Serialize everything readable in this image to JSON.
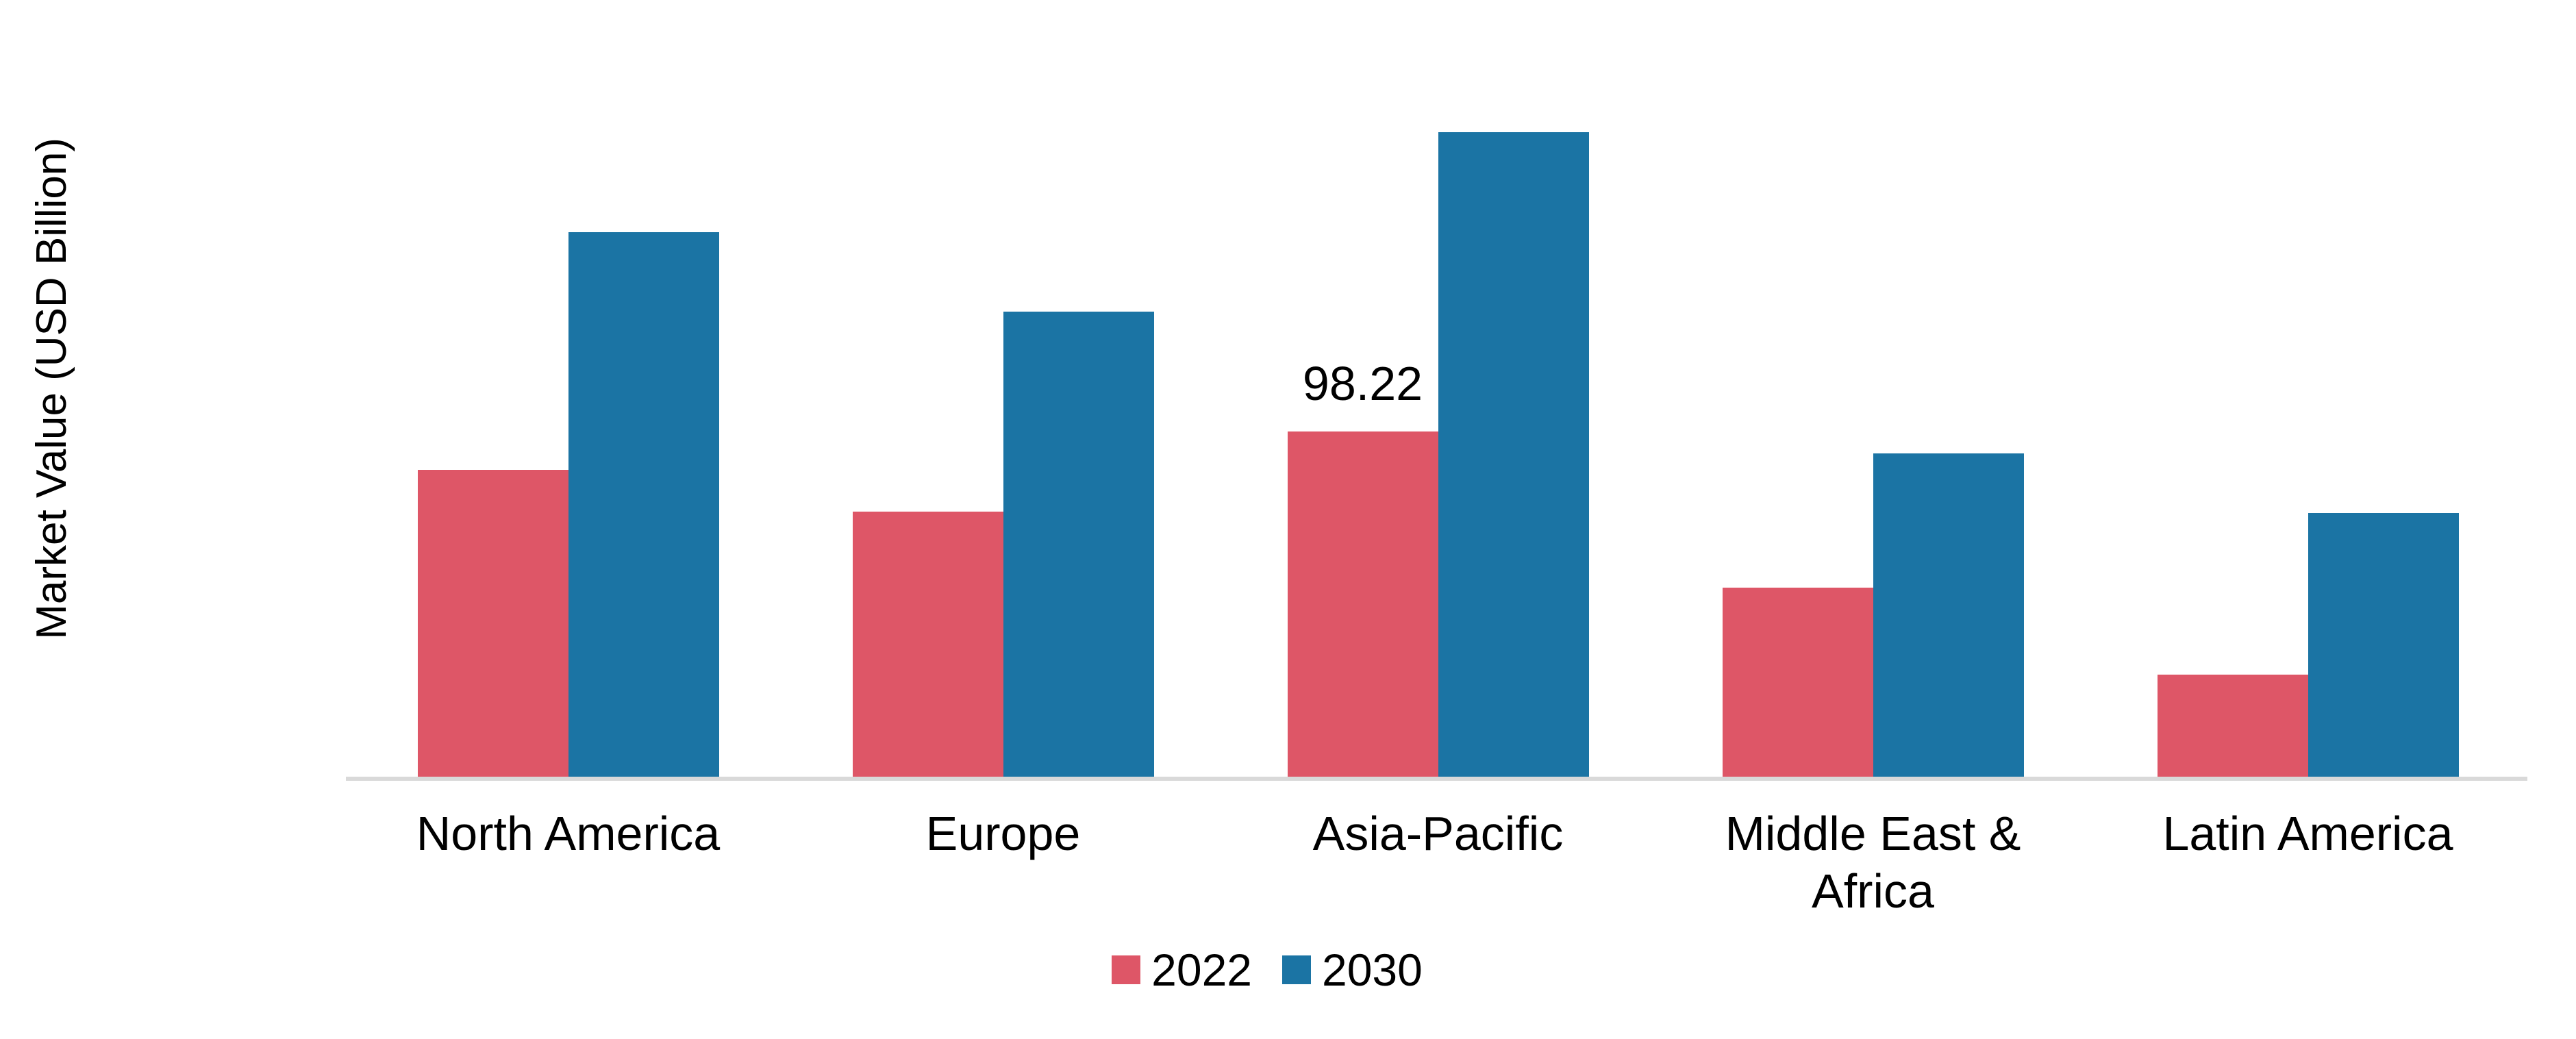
{
  "chart_data": {
    "type": "bar",
    "title": "",
    "xlabel": "",
    "ylabel": "Market Value (USD Billion)",
    "categories": [
      "North America",
      "Europe",
      "Asia-Pacific",
      "Middle East & Africa",
      "Latin America"
    ],
    "category_tick_lines": [
      [
        "North America"
      ],
      [
        "Europe"
      ],
      [
        "Asia-Pacific"
      ],
      [
        "Middle East &",
        "Africa"
      ],
      [
        "Latin America"
      ]
    ],
    "series": [
      {
        "name": "2022",
        "color": "#DE5667",
        "values": [
          87.3,
          75.4,
          98.22,
          53.8,
          29.0
        ]
      },
      {
        "name": "2030",
        "color": "#1B74A4",
        "values": [
          154.9,
          132.3,
          183.4,
          92.0,
          75.0
        ]
      }
    ],
    "data_labels": [
      {
        "series": "2022",
        "category": "Asia-Pacific",
        "text": "98.22"
      }
    ],
    "ylim": [
      0,
      221
    ],
    "grid": false,
    "y_axis_ticks_visible": false,
    "legend_position": "bottom",
    "axis_line_color": "#D9D9D9",
    "background_color": "#FFFFFF",
    "text_color": "#000000"
  }
}
